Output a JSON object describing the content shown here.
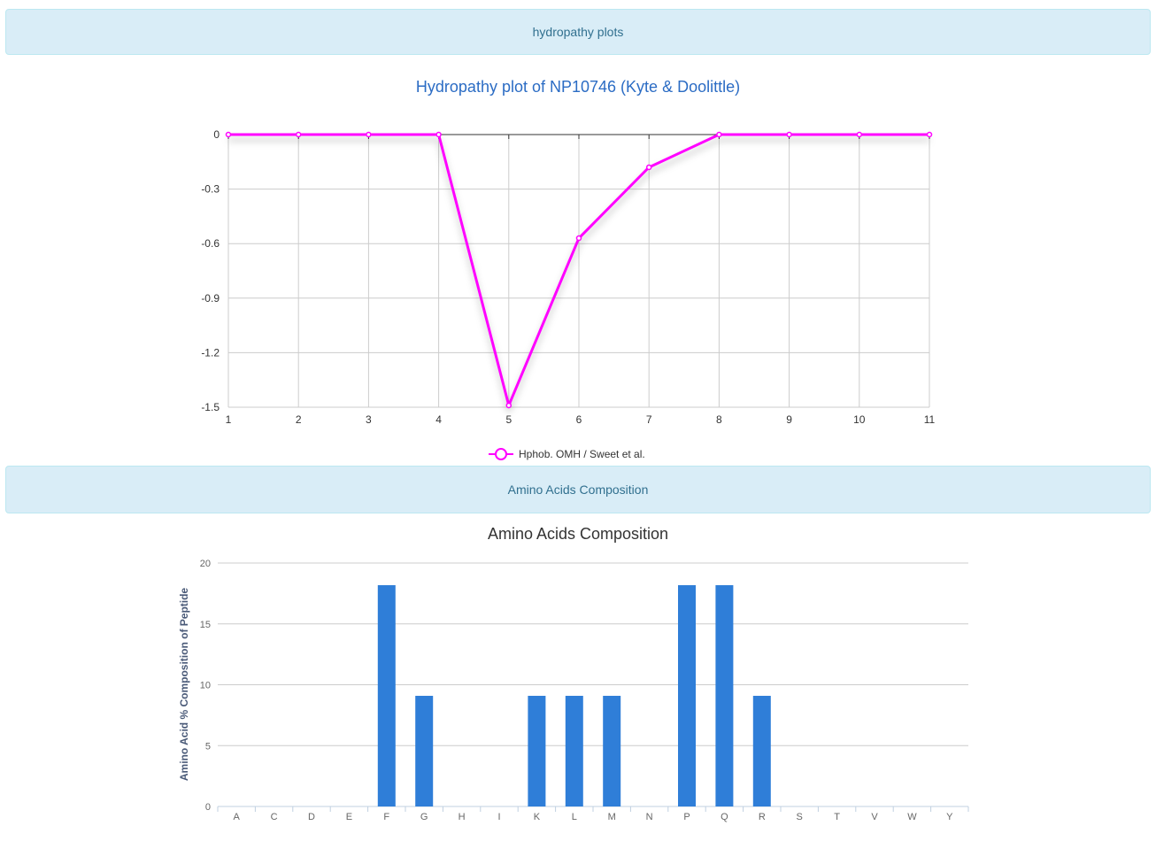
{
  "panels": {
    "hydropathy": "hydropathy plots",
    "composition": "Amino Acids Composition"
  },
  "colors": {
    "line": "#ff00ff",
    "bar": "#2f7ed8",
    "panel_bg": "#d9edf7",
    "panel_text": "#31708f"
  },
  "chart_data": [
    {
      "type": "line",
      "title": "Hydropathy plot of NP10746 (Kyte & Doolittle)",
      "xlabel": "",
      "ylabel": "",
      "x": [
        1,
        2,
        3,
        4,
        5,
        6,
        7,
        8,
        9,
        10,
        11
      ],
      "series": [
        {
          "name": "Hphob. OMH / Sweet et al.",
          "values": [
            0,
            0,
            0,
            0,
            -1.49,
            -0.57,
            -0.18,
            0,
            0,
            0,
            0
          ]
        }
      ],
      "xlim": [
        1,
        11
      ],
      "ylim": [
        -1.5,
        0
      ],
      "yticks": [
        0,
        -0.3,
        -0.6,
        -0.9,
        -1.2,
        -1.5
      ],
      "grid": true,
      "legend": "bottom-center"
    },
    {
      "type": "bar",
      "title": "Amino Acids Composition",
      "xlabel": "",
      "ylabel": "Amino Acid % Composition of Peptide",
      "categories": [
        "A",
        "C",
        "D",
        "E",
        "F",
        "G",
        "H",
        "I",
        "K",
        "L",
        "M",
        "N",
        "P",
        "Q",
        "R",
        "S",
        "T",
        "V",
        "W",
        "Y"
      ],
      "values": [
        0,
        0,
        0,
        0,
        18.18,
        9.09,
        0,
        0,
        9.09,
        9.09,
        9.09,
        0,
        18.18,
        18.18,
        9.09,
        0,
        0,
        0,
        0,
        0
      ],
      "ylim": [
        0,
        20
      ],
      "yticks": [
        0,
        5,
        10,
        15,
        20
      ],
      "grid": true
    }
  ]
}
